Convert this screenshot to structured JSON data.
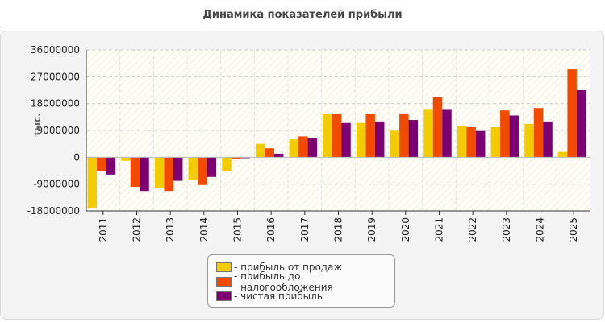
{
  "chart_data": {
    "type": "bar",
    "title": "Динамика показателей прибыли",
    "xlabel": "",
    "ylabel": "тыс.",
    "ylim": [
      -18000000,
      36000000
    ],
    "yticks": [
      36000000,
      27000000,
      18000000,
      9000000,
      0,
      -9000000,
      -18000000
    ],
    "ytick_labels": [
      "36000000",
      "27000000",
      "18000000",
      "9000000",
      "0",
      "-9000000",
      "-18000000"
    ],
    "categories": [
      "2011",
      "2012",
      "2013",
      "2014",
      "2015",
      "2016",
      "2017",
      "2018",
      "2019",
      "2020",
      "2021",
      "2022",
      "2023",
      "2024",
      "2025"
    ],
    "grid": true,
    "legend_position": "bottom",
    "series": [
      {
        "name": "прибыль от продаж",
        "color": "#f2cc00",
        "values": [
          -17200000,
          -1200000,
          -10200000,
          -7500000,
          -4800000,
          4500000,
          6000000,
          14400000,
          11500000,
          8900000,
          15900000,
          10600000,
          10100000,
          11200000,
          1800000
        ]
      },
      {
        "name": "прибыль до налогообложения",
        "color": "#f24b00",
        "values": [
          -4500000,
          -9900000,
          -11300000,
          -9300000,
          -700000,
          3000000,
          7000000,
          14700000,
          14400000,
          14700000,
          20200000,
          10100000,
          15700000,
          16500000,
          29500000
        ]
      },
      {
        "name": "чистая прибыль",
        "color": "#7d0073",
        "values": [
          -5800000,
          -11300000,
          -7900000,
          -6600000,
          -300000,
          1200000,
          6300000,
          11500000,
          12000000,
          12500000,
          15900000,
          8800000,
          14000000,
          12000000,
          22500000
        ]
      }
    ]
  }
}
